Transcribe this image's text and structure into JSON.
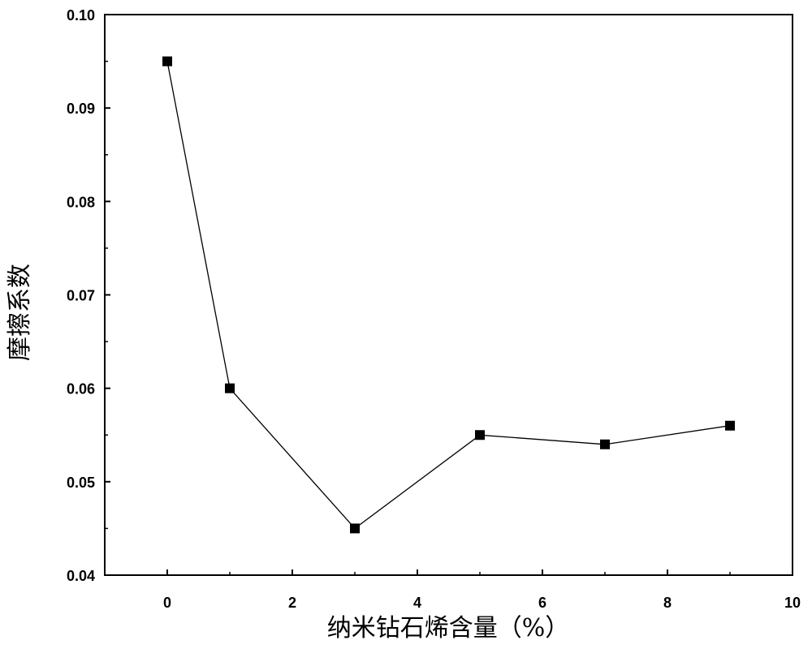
{
  "chart_data": {
    "type": "line",
    "title": "",
    "xlabel": "纳米钻石烯含量（%）",
    "ylabel": "摩擦系数",
    "xlim": [
      -1,
      10
    ],
    "ylim": [
      0.04,
      0.1
    ],
    "x_ticks": [
      0,
      2,
      4,
      6,
      8,
      10
    ],
    "y_ticks": [
      0.04,
      0.05,
      0.06,
      0.07,
      0.08,
      0.09,
      0.1
    ],
    "x_tick_labels": [
      "0",
      "2",
      "4",
      "6",
      "8",
      "10"
    ],
    "y_tick_labels": [
      "0.04",
      "0.05",
      "0.06",
      "0.07",
      "0.08",
      "0.09",
      "0.10"
    ],
    "grid": false,
    "legend": "none",
    "marker": "square",
    "line_color": "#000000",
    "series": [
      {
        "x": [
          0,
          1,
          3,
          5,
          7,
          9
        ],
        "values": [
          0.095,
          0.06,
          0.045,
          0.055,
          0.054,
          0.056
        ]
      }
    ]
  }
}
